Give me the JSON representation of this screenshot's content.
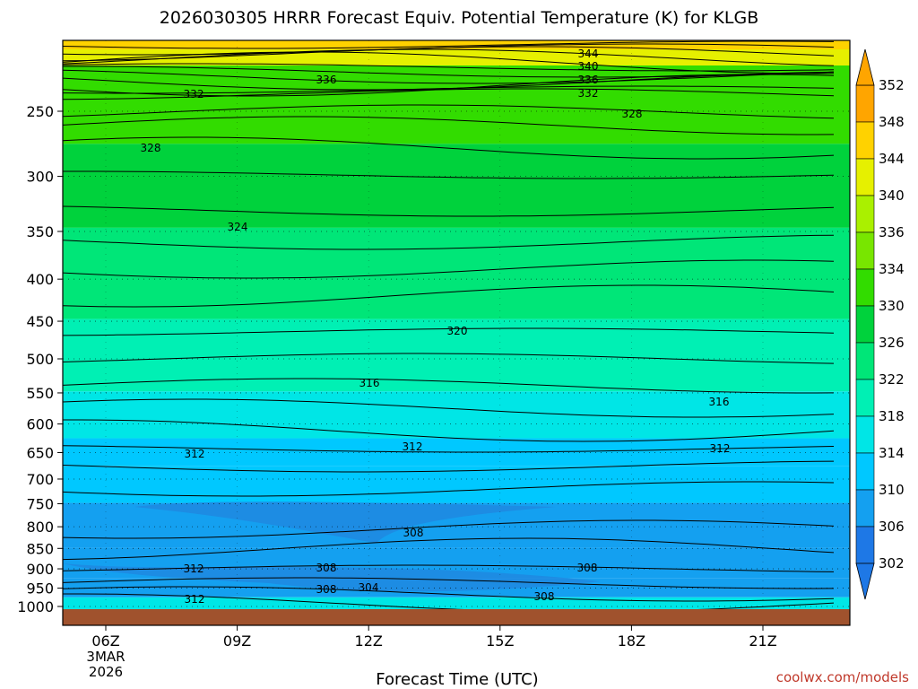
{
  "chart_data": {
    "type": "heatmap",
    "title": "2026030305 HRRR Forecast Equiv. Potential Temperature (K) for KLGB",
    "xlabel": "Forecast Time (UTC)",
    "ylabel": "",
    "x_ticks": [
      "06Z",
      "09Z",
      "12Z",
      "15Z",
      "18Z",
      "21Z"
    ],
    "x_start_date": [
      "3MAR",
      "2026"
    ],
    "y_ticks": [
      250,
      300,
      350,
      400,
      450,
      500,
      550,
      600,
      650,
      700,
      750,
      800,
      850,
      900,
      950,
      1000
    ],
    "y_scale": "log-pressure (inverted)",
    "colorbar": {
      "ticks": [
        302,
        306,
        310,
        314,
        318,
        322,
        326,
        330,
        334,
        336,
        340,
        344,
        348,
        352
      ],
      "colors": [
        "#1e78e6",
        "#14a0f0",
        "#00c8ff",
        "#00e6e6",
        "#00f0b4",
        "#00e678",
        "#00d23c",
        "#32dc00",
        "#78e600",
        "#aaf000",
        "#e6f000",
        "#ffd200",
        "#ffa500"
      ]
    },
    "layers": [
      {
        "level": 1000,
        "theta_e": 314
      },
      {
        "level": 950,
        "theta_e": 306
      },
      {
        "level": 900,
        "theta_e": 308
      },
      {
        "level": 800,
        "theta_e": 308
      },
      {
        "level": 700,
        "theta_e": 312
      },
      {
        "level": 650,
        "theta_e": 313
      },
      {
        "level": 600,
        "theta_e": 316
      },
      {
        "level": 500,
        "theta_e": 318
      },
      {
        "level": 400,
        "theta_e": 322
      },
      {
        "level": 300,
        "theta_e": 326
      },
      {
        "level": 250,
        "theta_e": 330
      }
    ],
    "contour_labels": [
      "344",
      "340",
      "336",
      "336",
      "332",
      "332",
      "328",
      "328",
      "324",
      "320",
      "316",
      "316",
      "312",
      "312",
      "312",
      "308",
      "308",
      "308",
      "312",
      "308",
      "304",
      "308",
      "312"
    ],
    "credit": "coolwx.com/models",
    "ground_color": "#a0522d"
  }
}
